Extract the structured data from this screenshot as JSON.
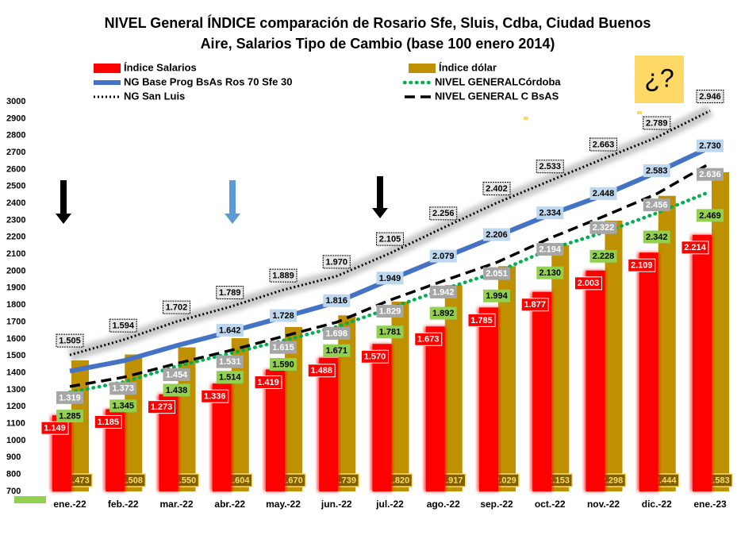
{
  "chart_data": {
    "type": "bar-line",
    "title": [
      "NIVEL General ÍNDICE comparación de Rosario Sfe, Sluis, Cdba, Ciudad Buenos",
      "Aire, Salarios Tipo de Cambio  (base 100 enero 2014)"
    ],
    "annotation": "¿?",
    "categories": [
      "ene.-22",
      "feb.-22",
      "mar.-22",
      "abr.-22",
      "may.-22",
      "jun.-22",
      "jul.-22",
      "ago.-22",
      "sep.-22",
      "oct.-22",
      "nov.-22",
      "dic.-22",
      "ene.-23"
    ],
    "ylim": [
      700,
      3000
    ],
    "yticks": [
      700,
      800,
      900,
      1000,
      1100,
      1200,
      1300,
      1400,
      1500,
      1600,
      1700,
      1800,
      1900,
      2000,
      2100,
      2200,
      2300,
      2400,
      2500,
      2600,
      2700,
      2800,
      2900,
      3000
    ],
    "series": [
      {
        "name": "Índice Salarios",
        "kind": "bar",
        "color": "#ff0000",
        "values": [
          1149,
          1185,
          1273,
          1336,
          1419,
          1488,
          1570,
          1673,
          1785,
          1877,
          2003,
          2109,
          2214
        ],
        "value_labels": [
          "1.149",
          "1.185",
          "1.273",
          "1.336",
          "1.419",
          "1.488",
          "1.570",
          "1.673",
          "1.785",
          "1.877",
          "2.003",
          "2.109",
          "2.214"
        ]
      },
      {
        "name": "Índice dólar",
        "kind": "bar",
        "color": "#bf9000",
        "values": [
          1473,
          1508,
          1550,
          1604,
          1670,
          1739,
          1820,
          1917,
          2029,
          2153,
          2298,
          2444,
          2583
        ],
        "value_labels": [
          "1.473",
          "1.508",
          "1.550",
          "1.604",
          "1.670",
          "1.739",
          "1.820",
          "1.917",
          "2.029",
          "2.153",
          "2.298",
          "2.444",
          "2.583"
        ]
      },
      {
        "name": "NG Base Prog BsAs Ros 70 Sfe 30",
        "kind": "line",
        "color": "#4472c4",
        "style": "solid",
        "values": [
          1410,
          1470,
          1560,
          1642,
          1728,
          1816,
          1949,
          2079,
          2206,
          2334,
          2448,
          2583,
          2730
        ],
        "value_labels": [
          null,
          null,
          null,
          "1.642",
          "1.728",
          "1.816",
          "1.949",
          "2.079",
          "2.206",
          "2.334",
          "2.448",
          "2.583",
          "2.730"
        ]
      },
      {
        "name": "NIVEL GENERALCórdoba",
        "kind": "line",
        "color": "#00b050",
        "style": "dotted",
        "values": [
          1285,
          1345,
          1438,
          1514,
          1590,
          1671,
          1781,
          1892,
          1994,
          2130,
          2228,
          2342,
          2469
        ],
        "value_labels": [
          "1.285",
          "1.345",
          "1.438",
          "1.514",
          "1.590",
          "1.671",
          "1.781",
          "1.892",
          "1.994",
          "2.130",
          "2.228",
          "2.342",
          "2.469"
        ]
      },
      {
        "name": "NG San Luis",
        "kind": "line",
        "color": "#000000",
        "style": "dotted-glow",
        "values": [
          1505,
          1594,
          1702,
          1789,
          1889,
          1970,
          2105,
          2256,
          2402,
          2533,
          2663,
          2789,
          2946
        ],
        "value_labels": [
          "1.505",
          "1.594",
          "1.702",
          "1.789",
          "1.889",
          "1.970",
          "2.105",
          "2.256",
          "2.402",
          "2.533",
          "2.663",
          "2.789",
          "2.946"
        ]
      },
      {
        "name": "NIVEL GENERAL C BsAS",
        "kind": "line",
        "color": "#000000",
        "style": "dashed",
        "values": [
          1319,
          1373,
          1454,
          1531,
          1615,
          1698,
          1829,
          1942,
          2051,
          2194,
          2322,
          2456,
          2636
        ],
        "value_labels": [
          "1.319",
          "1.373",
          "1.454",
          "1.531",
          "1.615",
          "1.698",
          "1.829",
          "1.942",
          "2.051",
          "2.194",
          "2.322",
          "2.456",
          "2.636"
        ]
      }
    ]
  }
}
